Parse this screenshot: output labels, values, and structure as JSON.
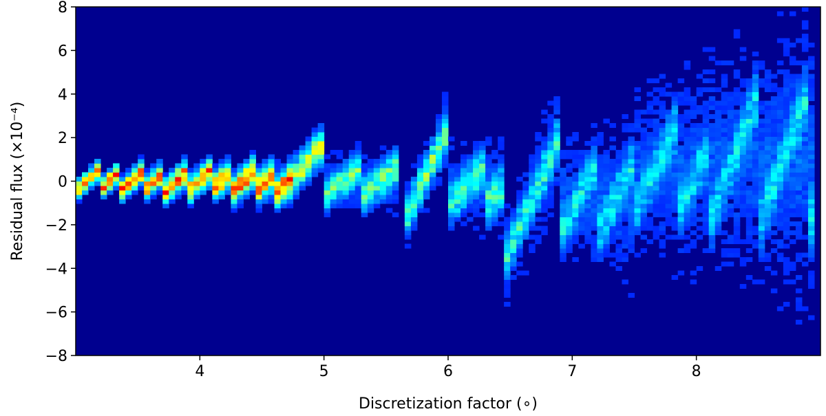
{
  "chart_data": {
    "type": "heatmap",
    "title": "",
    "xlabel": "Discretization factor (∘)",
    "ylabel": "Residual flux (×10⁻⁴)",
    "xlim": [
      3.0,
      9.0
    ],
    "ylim": [
      -8,
      8
    ],
    "colormap": "jet",
    "grid": false,
    "x_ticks": [
      4,
      5,
      6,
      7,
      8
    ],
    "x_tick_labels": [
      "4",
      "5",
      "6",
      "7",
      "8"
    ],
    "y_ticks": [
      -8,
      -6,
      -4,
      -2,
      0,
      2,
      4,
      6,
      8
    ],
    "y_tick_labels": [
      "−8",
      "−6",
      "−4",
      "−2",
      "0",
      "2",
      "4",
      "6",
      "8"
    ],
    "background_color": "#00008f",
    "ridge_segments": [
      {
        "x0": 3.0,
        "x1": 4.75,
        "y_mean": 0.0,
        "amplitude": 0.45,
        "period": 0.18,
        "intensity": 0.78
      },
      {
        "x0": 4.7,
        "x1": 4.98,
        "y_start": -0.2,
        "y_end": 1.6,
        "intensity": 0.6
      },
      {
        "x0": 5.0,
        "x1": 5.6,
        "y_mean": 0.0,
        "amplitude": 0.7,
        "period": 0.3,
        "intensity": 0.42
      },
      {
        "x0": 5.65,
        "x1": 5.98,
        "y_start": -1.8,
        "y_end": 2.2,
        "intensity": 0.45
      },
      {
        "x0": 6.0,
        "x1": 6.45,
        "y_mean": -0.2,
        "amplitude": 0.9,
        "period": 0.3,
        "intensity": 0.38
      },
      {
        "x0": 6.45,
        "x1": 6.9,
        "y_start": -3.7,
        "y_end": 2.0,
        "intensity": 0.35
      },
      {
        "x0": 6.9,
        "x1": 7.5,
        "y_mean": -0.8,
        "amplitude": 1.6,
        "period": 0.3,
        "intensity": 0.3
      },
      {
        "x0": 7.5,
        "x1": 8.1,
        "y_mean": 0.6,
        "amplitude": 2.0,
        "period": 0.35,
        "intensity": 0.28
      },
      {
        "x0": 8.1,
        "x1": 8.95,
        "y_mean": 1.0,
        "amplitude": 3.0,
        "period": 0.4,
        "intensity": 0.27
      }
    ]
  }
}
